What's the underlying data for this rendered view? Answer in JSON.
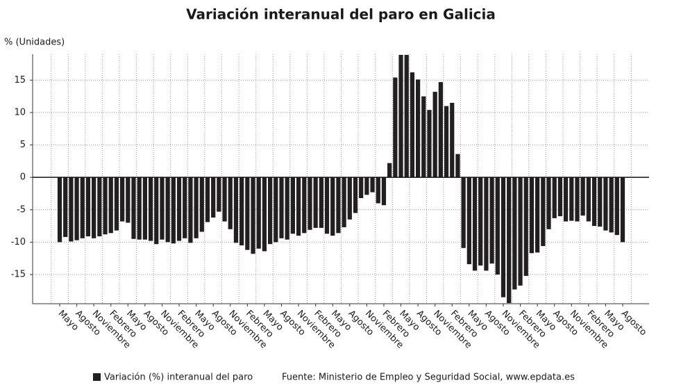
{
  "chart_data": {
    "type": "bar",
    "title": "Variación interanual del paro en Galicia",
    "y_label": "% (Unidades)",
    "source": "Fuente: Ministerio de Empleo y Seguridad Social, www.epdata.es",
    "categories": [
      "Mayo",
      null,
      null,
      "Agosto",
      null,
      null,
      "Noviembre",
      null,
      null,
      "Febrero",
      null,
      null,
      "Mayo",
      null,
      null,
      "Agosto",
      null,
      null,
      "Noviembre",
      null,
      null,
      "Febrero",
      null,
      null,
      "Mayo",
      null,
      null,
      "Agosto",
      null,
      null,
      "Noviembre",
      null,
      null,
      "Febrero",
      null,
      null,
      "Mayo",
      null,
      null,
      "Agosto",
      null,
      null,
      "Noviembre",
      null,
      null,
      "Febrero",
      null,
      null,
      "Mayo",
      null,
      null,
      "Agosto",
      null,
      null,
      "Noviembre",
      null,
      null,
      "Febrero",
      null,
      null,
      "Mayo",
      null,
      null,
      "Agosto",
      null,
      null,
      "Noviembre",
      null,
      null,
      "Febrero",
      null,
      null,
      "Mayo",
      null,
      null,
      "Agosto",
      null,
      null,
      "Noviembre",
      null,
      null,
      "Febrero",
      null,
      null,
      "Mayo",
      null,
      null,
      "Agosto",
      null,
      null,
      "Noviembre",
      null,
      null,
      "Febrero",
      null,
      null,
      "Mayo",
      null,
      null,
      "Agosto"
    ],
    "series": [
      {
        "name": "Variación (%) interanual del paro",
        "color": "#231f20",
        "values": [
          -10,
          -9.2,
          -9.9,
          -9.7,
          -9.4,
          -9.1,
          -9.4,
          -9.1,
          -8.8,
          -8.6,
          -8.2,
          -6.8,
          -7,
          -9.5,
          -9.6,
          -9.6,
          -9.8,
          -10.3,
          -9.6,
          -10,
          -10.2,
          -9.8,
          -9.4,
          -10.1,
          -9.4,
          -8.4,
          -6.9,
          -6.2,
          -5.3,
          -6.8,
          -8,
          -10.1,
          -10.5,
          -11.2,
          -11.8,
          -11,
          -11.4,
          -10.3,
          -10,
          -9.4,
          -9.6,
          -8.7,
          -9,
          -8.6,
          -8.1,
          -7.8,
          -7.8,
          -8.7,
          -9,
          -8.6,
          -7.7,
          -6.5,
          -5.5,
          -3.2,
          -2.7,
          -2.3,
          -4,
          -4.3,
          2.2,
          15.4,
          18.9,
          18.9,
          16.2,
          15.1,
          12.5,
          10.4,
          13.2,
          14.7,
          11,
          11.5,
          3.6,
          -10.9,
          -13.4,
          -14.4,
          -13.6,
          -14.4,
          -13.3,
          -15,
          -18.5,
          -19.4,
          -17.3,
          -16.7,
          -15.2,
          -11.7,
          -11.6,
          -10.6,
          -8,
          -6.3,
          -6,
          -6.8,
          -6.7,
          -6.8,
          -5.9,
          -6.8,
          -7.5,
          -7.6,
          -8.2,
          -8.5,
          -8.9,
          -10
        ]
      }
    ],
    "ylim": [
      -19.5,
      19
    ],
    "yticks": [
      -15,
      -10,
      -5,
      0,
      5,
      10,
      15
    ],
    "grid": true
  }
}
